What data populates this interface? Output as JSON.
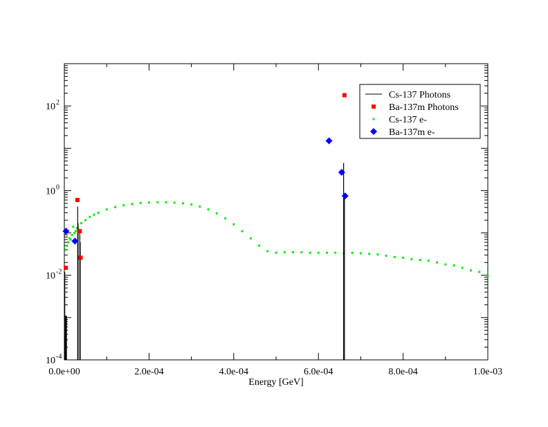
{
  "chart_data": {
    "type": "scatter",
    "title": "",
    "xlabel": "Energy [GeV]",
    "ylabel": "",
    "xlim": [
      0,
      0.001
    ],
    "ylim": [
      0.0001,
      1000
    ],
    "yscale": "log",
    "grid": false,
    "legend_position": "top-right",
    "x_tick_labels": [
      "0.0e+00",
      "2.0e-04",
      "4.0e-04",
      "6.0e-04",
      "8.0e-04",
      "1.0e-03"
    ],
    "x_tick_values": [
      0,
      0.0002,
      0.0004,
      0.0006,
      0.0008,
      0.001
    ],
    "y_tick_labels": [
      {
        "base": "10",
        "exp": "-4"
      },
      {
        "base": "10",
        "exp": "-2"
      },
      {
        "base": "10",
        "exp": "0"
      },
      {
        "base": "10",
        "exp": "2"
      }
    ],
    "y_tick_values": [
      0.0001,
      0.01,
      1,
      100
    ],
    "series": [
      {
        "name": "Cs-137 Photons",
        "style": "impulse",
        "color": "#000000",
        "x": [
          1e-06,
          2e-06,
          3e-06,
          4e-06,
          5e-06,
          3.15e-05,
          3.25e-05,
          3.65e-05,
          3.75e-05,
          0.0006595,
          0.0006615
        ],
        "y": [
          0.012,
          0.0011,
          0.0011,
          0.0011,
          0.0011,
          0.42,
          0.17,
          0.11,
          0.06,
          4.5,
          0.8
        ]
      },
      {
        "name": "Ba-137m Photons",
        "style": "square",
        "color": "#ff0000",
        "x": [
          3.5e-06,
          3.1e-05,
          3.65e-05,
          3.85e-05,
          0.0006615
        ],
        "y": [
          0.015,
          0.6,
          0.11,
          0.026,
          180
        ]
      },
      {
        "name": "Cs-137 e-",
        "style": "dot",
        "color": "#00ee00",
        "x": [
          3e-06,
          6e-06,
          9e-06,
          1.2e-05,
          1.5e-05,
          1.8e-05,
          2.1e-05,
          2.4e-05,
          2.7e-05,
          3e-05,
          3.3e-05,
          4e-05,
          5e-05,
          6e-05,
          7e-05,
          8e-05,
          0.0001,
          0.00012,
          0.00014,
          0.00016,
          0.00018,
          0.0002,
          0.00022,
          0.00024,
          0.00026,
          0.00028,
          0.0003,
          0.00032,
          0.00034,
          0.00036,
          0.00038,
          0.0004,
          0.00042,
          0.00044,
          0.00046,
          0.00048,
          0.0005,
          0.00052,
          0.00054,
          0.00056,
          0.00058,
          0.0006,
          0.00062,
          0.00064,
          0.00066,
          0.00068,
          0.0007,
          0.00072,
          0.00074,
          0.00076,
          0.00078,
          0.0008,
          0.00082,
          0.00084,
          0.00086,
          0.00088,
          0.0009,
          0.00092,
          0.00094,
          0.00096,
          0.00098,
          0.001
        ],
        "y": [
          0.04,
          0.05,
          0.06,
          0.075,
          0.07,
          0.09,
          0.14,
          0.1,
          0.11,
          0.13,
          0.12,
          0.17,
          0.2,
          0.24,
          0.27,
          0.3,
          0.36,
          0.41,
          0.45,
          0.48,
          0.51,
          0.52,
          0.53,
          0.53,
          0.52,
          0.5,
          0.47,
          0.42,
          0.36,
          0.29,
          0.22,
          0.16,
          0.11,
          0.074,
          0.05,
          0.037,
          0.034,
          0.035,
          0.035,
          0.035,
          0.034,
          0.034,
          0.034,
          0.034,
          0.033,
          0.034,
          0.033,
          0.032,
          0.031,
          0.029,
          0.027,
          0.026,
          0.024,
          0.023,
          0.022,
          0.02,
          0.018,
          0.017,
          0.015,
          0.013,
          0.012,
          0.0095
        ]
      },
      {
        "name": "Ba-137m e-",
        "style": "diamond",
        "color": "#0000ff",
        "x": [
          4e-06,
          2.5e-05,
          0.000625,
          0.000655,
          0.000663
        ],
        "y": [
          0.11,
          0.064,
          15,
          2.7,
          0.75
        ]
      }
    ]
  }
}
